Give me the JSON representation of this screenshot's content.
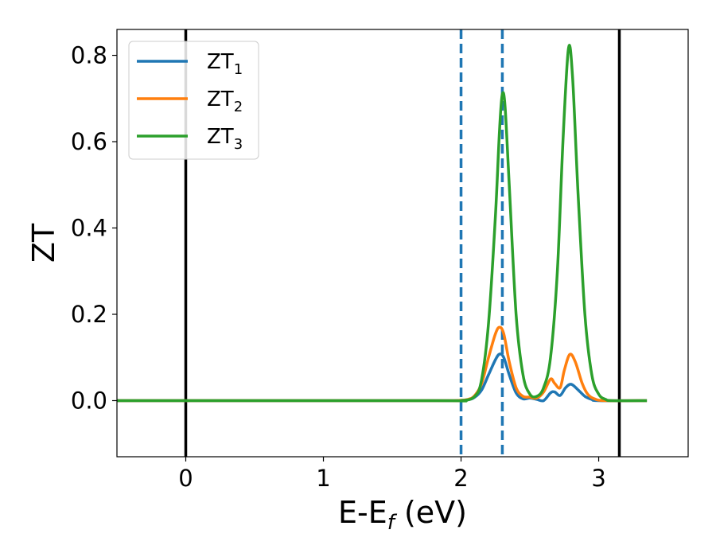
{
  "chart_data": {
    "type": "line",
    "xlabel_main": "E-E",
    "xlabel_sub": "f",
    "xlabel_unit": " (eV)",
    "ylabel": "ZT",
    "xlim": [
      -0.5,
      3.65
    ],
    "ylim": [
      -0.13,
      0.86
    ],
    "xticks": [
      {
        "value": 0,
        "label": "0"
      },
      {
        "value": 1,
        "label": "1"
      },
      {
        "value": 2,
        "label": "2"
      },
      {
        "value": 3,
        "label": "3"
      }
    ],
    "yticks": [
      {
        "value": 0.0,
        "label": "0.0"
      },
      {
        "value": 0.2,
        "label": "0.2"
      },
      {
        "value": 0.4,
        "label": "0.4"
      },
      {
        "value": 0.6,
        "label": "0.6"
      },
      {
        "value": 0.8,
        "label": "0.8"
      }
    ],
    "legend_position": "upper-left",
    "grid": false,
    "vertical_lines": [
      {
        "x": 0.0,
        "style": "solid",
        "color": "#000000"
      },
      {
        "x": 3.15,
        "style": "solid",
        "color": "#000000"
      },
      {
        "x": 2.0,
        "style": "dashed",
        "color": "#1f77b4"
      },
      {
        "x": 2.3,
        "style": "dashed",
        "color": "#1f77b4"
      }
    ],
    "series": [
      {
        "name": "ZT",
        "subscript": "1",
        "color": "#1f77b4",
        "points": [
          [
            -0.5,
            0
          ],
          [
            1.8,
            0
          ],
          [
            1.95,
            0
          ],
          [
            2.05,
            0.002
          ],
          [
            2.1,
            0.008
          ],
          [
            2.15,
            0.025
          ],
          [
            2.2,
            0.06
          ],
          [
            2.25,
            0.095
          ],
          [
            2.28,
            0.108
          ],
          [
            2.31,
            0.1
          ],
          [
            2.35,
            0.06
          ],
          [
            2.4,
            0.018
          ],
          [
            2.45,
            0.004
          ],
          [
            2.5,
            0.006
          ],
          [
            2.55,
            0.003
          ],
          [
            2.6,
            0.0
          ],
          [
            2.65,
            0.018
          ],
          [
            2.68,
            0.02
          ],
          [
            2.72,
            0.012
          ],
          [
            2.76,
            0.03
          ],
          [
            2.8,
            0.038
          ],
          [
            2.85,
            0.025
          ],
          [
            2.9,
            0.01
          ],
          [
            2.95,
            0.003
          ],
          [
            3.0,
            0.0
          ],
          [
            3.35,
            0
          ]
        ]
      },
      {
        "name": "ZT",
        "subscript": "2",
        "color": "#ff7f0e",
        "points": [
          [
            -0.5,
            0
          ],
          [
            1.8,
            0
          ],
          [
            1.95,
            0
          ],
          [
            2.05,
            0.003
          ],
          [
            2.1,
            0.012
          ],
          [
            2.15,
            0.04
          ],
          [
            2.2,
            0.1
          ],
          [
            2.25,
            0.155
          ],
          [
            2.28,
            0.17
          ],
          [
            2.31,
            0.155
          ],
          [
            2.35,
            0.09
          ],
          [
            2.4,
            0.03
          ],
          [
            2.45,
            0.01
          ],
          [
            2.5,
            0.008
          ],
          [
            2.55,
            0.006
          ],
          [
            2.6,
            0.02
          ],
          [
            2.65,
            0.05
          ],
          [
            2.68,
            0.04
          ],
          [
            2.72,
            0.03
          ],
          [
            2.75,
            0.07
          ],
          [
            2.79,
            0.107
          ],
          [
            2.83,
            0.09
          ],
          [
            2.88,
            0.04
          ],
          [
            2.92,
            0.015
          ],
          [
            2.97,
            0.004
          ],
          [
            3.05,
            0
          ],
          [
            3.35,
            0
          ]
        ]
      },
      {
        "name": "ZT",
        "subscript": "3",
        "color": "#2ca02c",
        "points": [
          [
            -0.5,
            0
          ],
          [
            1.8,
            0
          ],
          [
            2.0,
            0.0
          ],
          [
            2.1,
            0.01
          ],
          [
            2.15,
            0.05
          ],
          [
            2.2,
            0.18
          ],
          [
            2.25,
            0.43
          ],
          [
            2.28,
            0.63
          ],
          [
            2.3,
            0.71
          ],
          [
            2.32,
            0.68
          ],
          [
            2.35,
            0.5
          ],
          [
            2.4,
            0.2
          ],
          [
            2.45,
            0.06
          ],
          [
            2.5,
            0.015
          ],
          [
            2.55,
            0.01
          ],
          [
            2.6,
            0.03
          ],
          [
            2.65,
            0.1
          ],
          [
            2.7,
            0.3
          ],
          [
            2.74,
            0.6
          ],
          [
            2.78,
            0.815
          ],
          [
            2.81,
            0.75
          ],
          [
            2.85,
            0.48
          ],
          [
            2.9,
            0.2
          ],
          [
            2.95,
            0.06
          ],
          [
            3.0,
            0.015
          ],
          [
            3.05,
            0.003
          ],
          [
            3.1,
            0
          ],
          [
            3.35,
            0
          ]
        ]
      }
    ]
  }
}
